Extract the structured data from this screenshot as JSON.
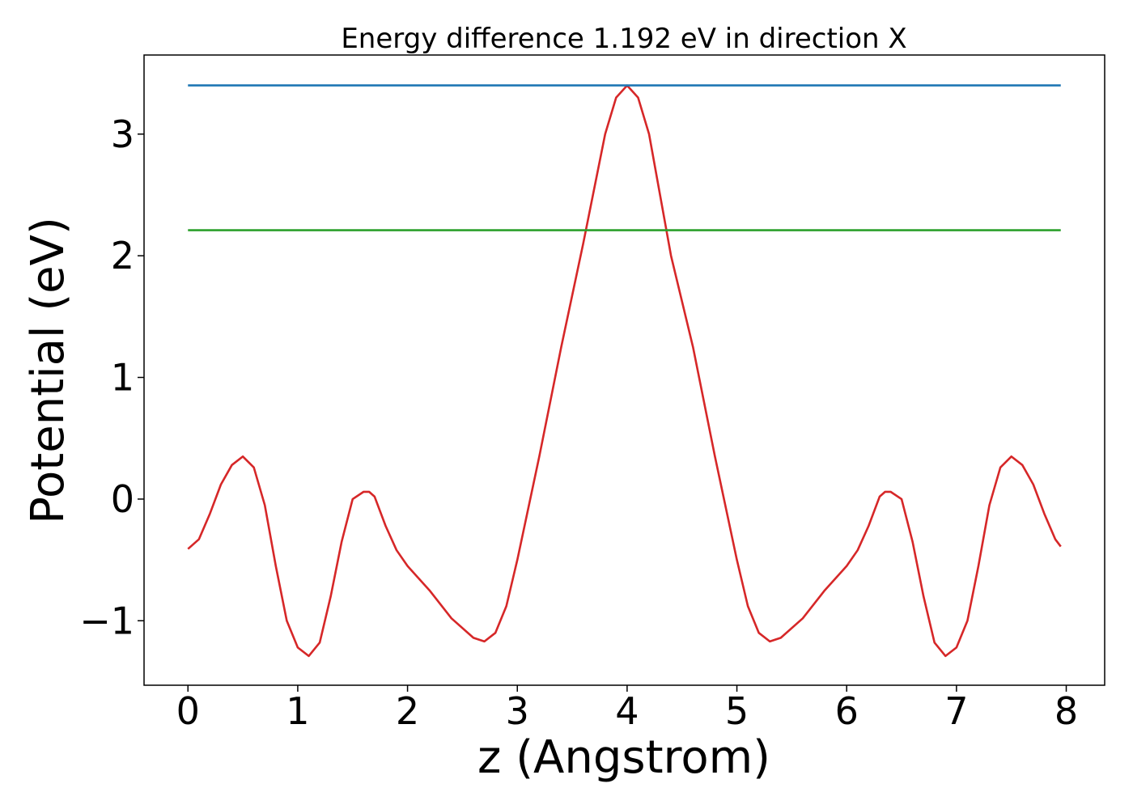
{
  "chart_data": {
    "type": "line",
    "title": "Energy difference 1.192 eV in direction X",
    "xlabel": "z (Angstrom)",
    "ylabel": "Potential (eV)",
    "xlim": [
      -0.4,
      8.35
    ],
    "ylim": [
      -1.53,
      3.65
    ],
    "xticks": [
      0,
      1,
      2,
      3,
      4,
      5,
      6,
      7,
      8
    ],
    "xtick_labels": [
      "0",
      "1",
      "2",
      "3",
      "4",
      "5",
      "6",
      "7",
      "8"
    ],
    "yticks": [
      -1,
      0,
      1,
      2,
      3
    ],
    "ytick_labels": [
      "−1",
      "0",
      "1",
      "2",
      "3"
    ],
    "grid": false,
    "series": [
      {
        "color": "#d62728",
        "x": [
          0.0,
          0.1,
          0.2,
          0.3,
          0.4,
          0.5,
          0.6,
          0.7,
          0.8,
          0.9,
          1.0,
          1.1,
          1.2,
          1.3,
          1.4,
          1.5,
          1.6,
          1.65,
          1.7,
          1.8,
          1.9,
          2.0,
          2.2,
          2.4,
          2.6,
          2.7,
          2.8,
          2.9,
          3.0,
          3.2,
          3.4,
          3.6,
          3.8,
          3.9,
          4.0,
          4.1,
          4.2,
          4.4,
          4.6,
          4.8,
          5.0,
          5.1,
          5.2,
          5.3,
          5.4,
          5.6,
          5.8,
          6.0,
          6.1,
          6.2,
          6.3,
          6.35,
          6.4,
          6.5,
          6.6,
          6.7,
          6.8,
          6.9,
          7.0,
          7.1,
          7.2,
          7.3,
          7.4,
          7.5,
          7.6,
          7.7,
          7.8,
          7.9,
          7.95
        ],
        "y": [
          -0.41,
          -0.33,
          -0.12,
          0.12,
          0.28,
          0.35,
          0.26,
          -0.05,
          -0.55,
          -1.0,
          -1.22,
          -1.29,
          -1.18,
          -0.8,
          -0.35,
          0.0,
          0.06,
          0.06,
          0.02,
          -0.22,
          -0.42,
          -0.55,
          -0.75,
          -0.98,
          -1.14,
          -1.17,
          -1.1,
          -0.88,
          -0.5,
          0.35,
          1.25,
          2.1,
          3.0,
          3.3,
          3.4,
          3.3,
          3.0,
          2.0,
          1.25,
          0.35,
          -0.5,
          -0.88,
          -1.1,
          -1.17,
          -1.14,
          -0.98,
          -0.75,
          -0.55,
          -0.42,
          -0.22,
          0.02,
          0.06,
          0.06,
          0.0,
          -0.35,
          -0.8,
          -1.18,
          -1.29,
          -1.22,
          -1.0,
          -0.55,
          -0.05,
          0.26,
          0.35,
          0.28,
          0.12,
          -0.12,
          -0.33,
          -0.39
        ]
      },
      {
        "color": "#1f77b4",
        "x": [
          0.0,
          7.95
        ],
        "y": [
          3.4,
          3.4
        ]
      },
      {
        "color": "#2ca02c",
        "x": [
          0.0,
          7.95
        ],
        "y": [
          2.21,
          2.21
        ]
      }
    ]
  }
}
